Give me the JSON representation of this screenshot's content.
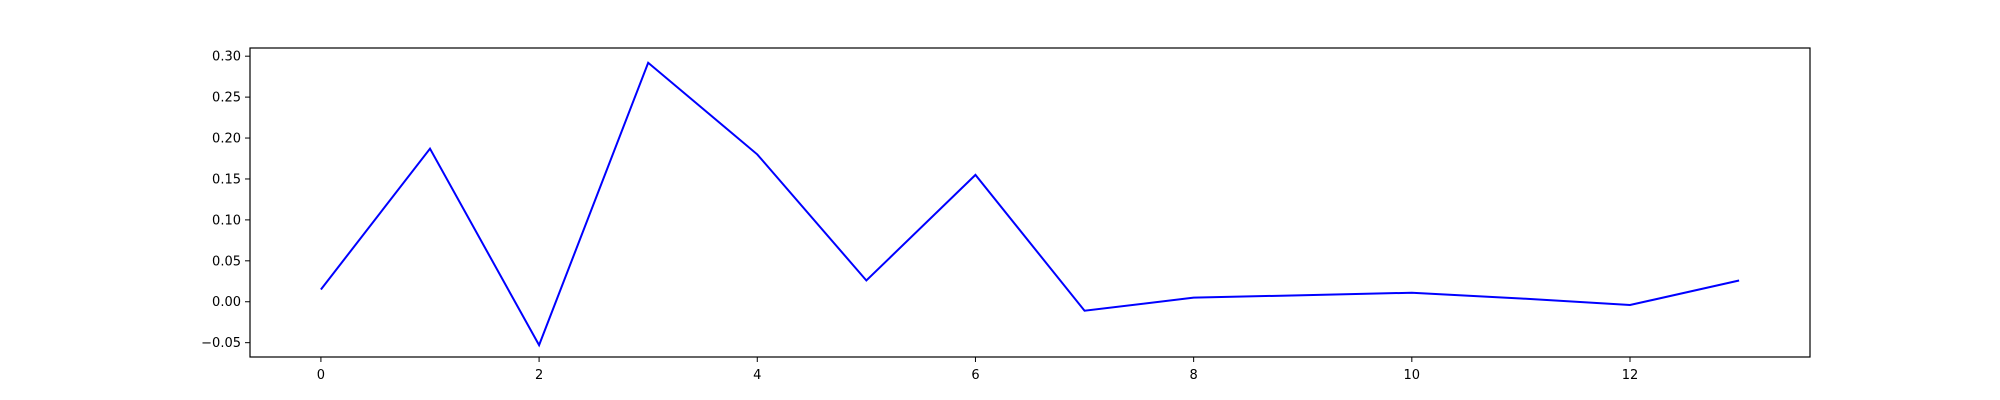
{
  "chart_data": {
    "type": "line",
    "title": "",
    "xlabel": "",
    "ylabel": "",
    "x": [
      0,
      1,
      2,
      3,
      4,
      5,
      6,
      7,
      8,
      9,
      10,
      11,
      12,
      13
    ],
    "series": [
      {
        "values": [
          0.015,
          0.187,
          -0.053,
          0.292,
          0.18,
          0.026,
          0.155,
          -0.011,
          0.005,
          0.008,
          0.011,
          0.004,
          -0.004,
          0.026
        ],
        "color": "#0000ff"
      }
    ],
    "xlim": [
      -0.65,
      13.65
    ],
    "ylim": [
      -0.0675,
      0.31
    ],
    "xticks": [
      0,
      2,
      4,
      6,
      8,
      10,
      12
    ],
    "xtick_labels": [
      "0",
      "2",
      "4",
      "6",
      "8",
      "10",
      "12"
    ],
    "yticks": [
      -0.05,
      0.0,
      0.05,
      0.1,
      0.15,
      0.2,
      0.25,
      0.3
    ],
    "ytick_labels": [
      "−0.05",
      "0.00",
      "0.05",
      "0.10",
      "0.15",
      "0.20",
      "0.25",
      "0.30"
    ],
    "grid": false,
    "legend": "none"
  }
}
